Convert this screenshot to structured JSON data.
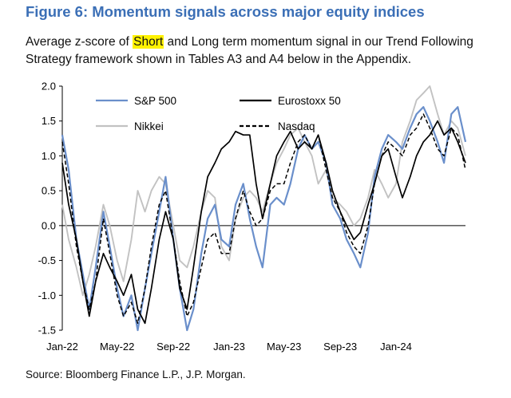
{
  "figure": {
    "title": "Figure 6: Momentum signals across major equity indices",
    "subtitle_pre": "Average z-score of ",
    "subtitle_highlight": "Short",
    "subtitle_post": " and Long term momentum signal in our Trend Following Strategy framework shown in Tables A3 and A4 below in the Appendix.",
    "source": "Source: Bloomberg Finance L.P., J.P. Morgan."
  },
  "colors": {
    "title": "#3b6fb6",
    "highlight": "#fff200",
    "sp500": "#6a8fcb",
    "eurostoxx": "#000000",
    "nikkei": "#c2c2c2",
    "nasdaq": "#000000"
  },
  "chart_data": {
    "type": "line",
    "title": "",
    "xlabel": "",
    "ylabel": "",
    "ylim": [
      -1.5,
      2.0
    ],
    "yticks": [
      "2.0",
      "1.5",
      "1.0",
      "0.5",
      "0.0",
      "-0.5",
      "-1.0",
      "-1.5"
    ],
    "xlim": [
      "2022-01-01",
      "2024-06-01"
    ],
    "xticks": [
      {
        "date": "2022-01-01",
        "label": "Jan-22"
      },
      {
        "date": "2022-05-01",
        "label": "May-22"
      },
      {
        "date": "2022-09-01",
        "label": "Sep-22"
      },
      {
        "date": "2023-01-01",
        "label": "Jan-23"
      },
      {
        "date": "2023-05-01",
        "label": "May-23"
      },
      {
        "date": "2023-09-01",
        "label": "Sep-23"
      },
      {
        "date": "2024-01-01",
        "label": "Jan-24"
      }
    ],
    "grid": false,
    "zero_line": true,
    "legend": [
      {
        "name": "S&P 500",
        "style": "solid",
        "color": "#6a8fcb"
      },
      {
        "name": "Eurostoxx 50",
        "style": "solid",
        "color": "#000000"
      },
      {
        "name": "Nikkei",
        "style": "solid",
        "color": "#c2c2c2"
      },
      {
        "name": "Nasdaq",
        "style": "dashed",
        "color": "#000000"
      }
    ],
    "series": [
      {
        "name": "S&P 500",
        "values": [
          [
            "2022-01-01",
            1.3
          ],
          [
            "2022-01-15",
            0.8
          ],
          [
            "2022-02-01",
            -0.2
          ],
          [
            "2022-02-15",
            -0.7
          ],
          [
            "2022-03-01",
            -1.2
          ],
          [
            "2022-03-15",
            -0.6
          ],
          [
            "2022-04-01",
            0.2
          ],
          [
            "2022-04-15",
            -0.3
          ],
          [
            "2022-05-01",
            -0.9
          ],
          [
            "2022-05-15",
            -1.3
          ],
          [
            "2022-06-01",
            -1.0
          ],
          [
            "2022-06-15",
            -1.5
          ],
          [
            "2022-07-01",
            -0.9
          ],
          [
            "2022-07-15",
            -0.4
          ],
          [
            "2022-08-01",
            0.2
          ],
          [
            "2022-08-15",
            0.7
          ],
          [
            "2022-09-01",
            -0.2
          ],
          [
            "2022-09-15",
            -0.9
          ],
          [
            "2022-10-01",
            -1.5
          ],
          [
            "2022-10-15",
            -1.2
          ],
          [
            "2022-11-01",
            -0.4
          ],
          [
            "2022-11-15",
            0.1
          ],
          [
            "2022-12-01",
            0.3
          ],
          [
            "2022-12-15",
            -0.2
          ],
          [
            "2023-01-01",
            -0.3
          ],
          [
            "2023-01-15",
            0.3
          ],
          [
            "2023-02-01",
            0.6
          ],
          [
            "2023-02-15",
            0.1
          ],
          [
            "2023-03-01",
            -0.3
          ],
          [
            "2023-03-15",
            -0.6
          ],
          [
            "2023-04-01",
            0.3
          ],
          [
            "2023-04-15",
            0.4
          ],
          [
            "2023-05-01",
            0.3
          ],
          [
            "2023-05-15",
            0.6
          ],
          [
            "2023-06-01",
            1.1
          ],
          [
            "2023-06-15",
            1.3
          ],
          [
            "2023-07-01",
            1.1
          ],
          [
            "2023-07-15",
            1.2
          ],
          [
            "2023-08-01",
            0.9
          ],
          [
            "2023-08-15",
            0.3
          ],
          [
            "2023-09-01",
            0.1
          ],
          [
            "2023-09-15",
            -0.2
          ],
          [
            "2023-10-01",
            -0.4
          ],
          [
            "2023-10-15",
            -0.6
          ],
          [
            "2023-11-01",
            -0.1
          ],
          [
            "2023-11-15",
            0.7
          ],
          [
            "2023-12-01",
            1.1
          ],
          [
            "2023-12-15",
            1.3
          ],
          [
            "2024-01-01",
            1.2
          ],
          [
            "2024-01-15",
            1.1
          ],
          [
            "2024-02-01",
            1.4
          ],
          [
            "2024-02-15",
            1.6
          ],
          [
            "2024-03-01",
            1.7
          ],
          [
            "2024-03-15",
            1.5
          ],
          [
            "2024-04-01",
            1.2
          ],
          [
            "2024-04-15",
            0.9
          ],
          [
            "2024-05-01",
            1.6
          ],
          [
            "2024-05-15",
            1.7
          ],
          [
            "2024-06-01",
            1.2
          ]
        ]
      },
      {
        "name": "Eurostoxx 50",
        "values": [
          [
            "2022-01-01",
            0.9
          ],
          [
            "2022-01-15",
            0.3
          ],
          [
            "2022-02-01",
            -0.2
          ],
          [
            "2022-02-15",
            -0.8
          ],
          [
            "2022-03-01",
            -1.3
          ],
          [
            "2022-03-15",
            -0.8
          ],
          [
            "2022-04-01",
            -0.4
          ],
          [
            "2022-04-15",
            -0.6
          ],
          [
            "2022-05-01",
            -0.8
          ],
          [
            "2022-05-15",
            -1.0
          ],
          [
            "2022-06-01",
            -0.7
          ],
          [
            "2022-06-15",
            -1.2
          ],
          [
            "2022-07-01",
            -1.4
          ],
          [
            "2022-07-15",
            -0.9
          ],
          [
            "2022-08-01",
            -0.2
          ],
          [
            "2022-08-15",
            0.2
          ],
          [
            "2022-09-01",
            -0.2
          ],
          [
            "2022-09-15",
            -0.9
          ],
          [
            "2022-10-01",
            -1.2
          ],
          [
            "2022-10-15",
            -0.6
          ],
          [
            "2022-11-01",
            0.2
          ],
          [
            "2022-11-15",
            0.7
          ],
          [
            "2022-12-01",
            0.9
          ],
          [
            "2022-12-15",
            1.1
          ],
          [
            "2023-01-01",
            1.2
          ],
          [
            "2023-01-15",
            1.35
          ],
          [
            "2023-02-01",
            1.3
          ],
          [
            "2023-02-15",
            1.3
          ],
          [
            "2023-03-01",
            0.6
          ],
          [
            "2023-03-15",
            0.1
          ],
          [
            "2023-04-01",
            0.6
          ],
          [
            "2023-04-15",
            1.0
          ],
          [
            "2023-05-01",
            1.2
          ],
          [
            "2023-05-15",
            1.35
          ],
          [
            "2023-06-01",
            1.1
          ],
          [
            "2023-06-15",
            1.2
          ],
          [
            "2023-07-01",
            1.1
          ],
          [
            "2023-07-15",
            1.3
          ],
          [
            "2023-08-01",
            0.9
          ],
          [
            "2023-08-15",
            0.5
          ],
          [
            "2023-09-01",
            0.2
          ],
          [
            "2023-09-15",
            0.0
          ],
          [
            "2023-10-01",
            -0.2
          ],
          [
            "2023-10-15",
            -0.1
          ],
          [
            "2023-11-01",
            0.3
          ],
          [
            "2023-11-15",
            0.6
          ],
          [
            "2023-12-01",
            1.0
          ],
          [
            "2023-12-15",
            1.1
          ],
          [
            "2024-01-01",
            0.7
          ],
          [
            "2024-01-15",
            0.4
          ],
          [
            "2024-02-01",
            0.7
          ],
          [
            "2024-02-15",
            1.0
          ],
          [
            "2024-03-01",
            1.2
          ],
          [
            "2024-03-15",
            1.3
          ],
          [
            "2024-04-01",
            1.5
          ],
          [
            "2024-04-15",
            1.3
          ],
          [
            "2024-05-01",
            1.4
          ],
          [
            "2024-05-15",
            1.2
          ],
          [
            "2024-06-01",
            0.9
          ]
        ]
      },
      {
        "name": "Nikkei",
        "values": [
          [
            "2022-01-01",
            0.3
          ],
          [
            "2022-01-15",
            -0.2
          ],
          [
            "2022-02-01",
            -0.6
          ],
          [
            "2022-02-15",
            -1.0
          ],
          [
            "2022-03-01",
            -0.7
          ],
          [
            "2022-03-15",
            -0.3
          ],
          [
            "2022-04-01",
            0.3
          ],
          [
            "2022-04-15",
            0.0
          ],
          [
            "2022-05-01",
            -0.5
          ],
          [
            "2022-05-15",
            -0.8
          ],
          [
            "2022-06-01",
            -0.2
          ],
          [
            "2022-06-15",
            0.5
          ],
          [
            "2022-07-01",
            0.2
          ],
          [
            "2022-07-15",
            0.5
          ],
          [
            "2022-08-01",
            0.7
          ],
          [
            "2022-08-15",
            0.6
          ],
          [
            "2022-09-01",
            0.0
          ],
          [
            "2022-09-15",
            -0.5
          ],
          [
            "2022-10-01",
            -0.6
          ],
          [
            "2022-10-15",
            -0.3
          ],
          [
            "2022-11-01",
            0.2
          ],
          [
            "2022-11-15",
            0.5
          ],
          [
            "2022-12-01",
            0.4
          ],
          [
            "2022-12-15",
            -0.3
          ],
          [
            "2023-01-01",
            -0.5
          ],
          [
            "2023-01-15",
            0.1
          ],
          [
            "2023-02-01",
            0.4
          ],
          [
            "2023-02-15",
            0.5
          ],
          [
            "2023-03-01",
            0.4
          ],
          [
            "2023-03-15",
            0.2
          ],
          [
            "2023-04-01",
            0.6
          ],
          [
            "2023-04-15",
            0.9
          ],
          [
            "2023-05-01",
            1.1
          ],
          [
            "2023-05-15",
            1.3
          ],
          [
            "2023-06-01",
            1.4
          ],
          [
            "2023-06-15",
            1.2
          ],
          [
            "2023-07-01",
            1.0
          ],
          [
            "2023-07-15",
            0.6
          ],
          [
            "2023-08-01",
            0.8
          ],
          [
            "2023-08-15",
            0.4
          ],
          [
            "2023-09-01",
            0.3
          ],
          [
            "2023-09-15",
            0.2
          ],
          [
            "2023-10-01",
            0.0
          ],
          [
            "2023-10-15",
            0.1
          ],
          [
            "2023-11-01",
            0.4
          ],
          [
            "2023-11-15",
            0.8
          ],
          [
            "2023-12-01",
            0.6
          ],
          [
            "2023-12-15",
            0.4
          ],
          [
            "2024-01-01",
            0.6
          ],
          [
            "2024-01-15",
            1.2
          ],
          [
            "2024-02-01",
            1.5
          ],
          [
            "2024-02-15",
            1.8
          ],
          [
            "2024-03-01",
            1.9
          ],
          [
            "2024-03-15",
            2.0
          ],
          [
            "2024-04-01",
            1.6
          ],
          [
            "2024-04-15",
            1.3
          ],
          [
            "2024-05-01",
            1.5
          ],
          [
            "2024-05-15",
            1.4
          ],
          [
            "2024-06-01",
            1.0
          ]
        ]
      },
      {
        "name": "Nasdaq",
        "values": [
          [
            "2022-01-01",
            1.2
          ],
          [
            "2022-01-15",
            0.6
          ],
          [
            "2022-02-01",
            -0.3
          ],
          [
            "2022-02-15",
            -0.8
          ],
          [
            "2022-03-01",
            -1.2
          ],
          [
            "2022-03-15",
            -0.8
          ],
          [
            "2022-04-01",
            0.1
          ],
          [
            "2022-04-15",
            -0.4
          ],
          [
            "2022-05-01",
            -1.0
          ],
          [
            "2022-05-15",
            -1.3
          ],
          [
            "2022-06-01",
            -1.1
          ],
          [
            "2022-06-15",
            -1.4
          ],
          [
            "2022-07-01",
            -0.9
          ],
          [
            "2022-07-15",
            -0.3
          ],
          [
            "2022-08-01",
            0.3
          ],
          [
            "2022-08-15",
            0.5
          ],
          [
            "2022-09-01",
            -0.2
          ],
          [
            "2022-09-15",
            -0.8
          ],
          [
            "2022-10-01",
            -1.3
          ],
          [
            "2022-10-15",
            -1.1
          ],
          [
            "2022-11-01",
            -0.6
          ],
          [
            "2022-11-15",
            -0.2
          ],
          [
            "2022-12-01",
            -0.1
          ],
          [
            "2022-12-15",
            -0.4
          ],
          [
            "2023-01-01",
            -0.4
          ],
          [
            "2023-01-15",
            0.1
          ],
          [
            "2023-02-01",
            0.5
          ],
          [
            "2023-02-15",
            0.2
          ],
          [
            "2023-03-01",
            0.0
          ],
          [
            "2023-03-15",
            0.1
          ],
          [
            "2023-04-01",
            0.5
          ],
          [
            "2023-04-15",
            0.6
          ],
          [
            "2023-05-01",
            0.6
          ],
          [
            "2023-05-15",
            0.9
          ],
          [
            "2023-06-01",
            1.2
          ],
          [
            "2023-06-15",
            1.3
          ],
          [
            "2023-07-01",
            1.1
          ],
          [
            "2023-07-15",
            1.3
          ],
          [
            "2023-08-01",
            0.8
          ],
          [
            "2023-08-15",
            0.4
          ],
          [
            "2023-09-01",
            0.2
          ],
          [
            "2023-09-15",
            -0.1
          ],
          [
            "2023-10-01",
            -0.3
          ],
          [
            "2023-10-15",
            -0.4
          ],
          [
            "2023-11-01",
            0.0
          ],
          [
            "2023-11-15",
            0.6
          ],
          [
            "2023-12-01",
            1.0
          ],
          [
            "2023-12-15",
            1.2
          ],
          [
            "2024-01-01",
            1.1
          ],
          [
            "2024-01-15",
            1.0
          ],
          [
            "2024-02-01",
            1.3
          ],
          [
            "2024-02-15",
            1.4
          ],
          [
            "2024-03-01",
            1.6
          ],
          [
            "2024-03-15",
            1.4
          ],
          [
            "2024-04-01",
            1.1
          ],
          [
            "2024-04-15",
            1.0
          ],
          [
            "2024-05-01",
            1.4
          ],
          [
            "2024-05-15",
            1.3
          ],
          [
            "2024-06-01",
            0.8
          ]
        ]
      }
    ]
  }
}
